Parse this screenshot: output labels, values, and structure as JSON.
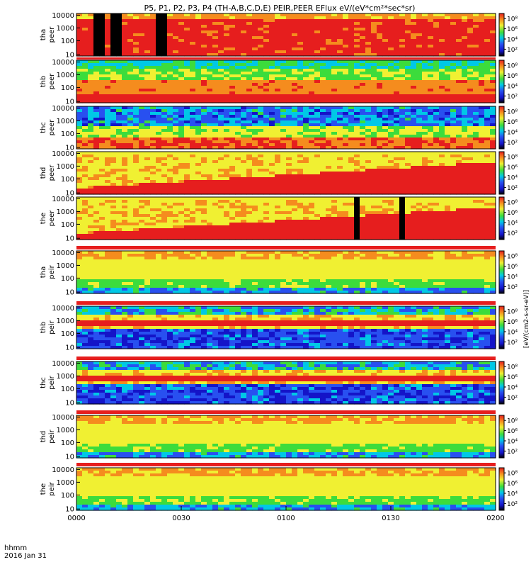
{
  "chart_data": {
    "type": "heatmap",
    "title": "P5, P1, P2, P3, P4 (TH-A,B,C,D,E) PEIR,PEER EFlux eV/(eV*cm²*sec*sr)",
    "colorbar_label": "[eV/(cm2-s-sr-eV)]",
    "x_axis": {
      "tick_labels": [
        "0000",
        "0030",
        "0100",
        "0130",
        "0200"
      ],
      "label_line1": "hhmm",
      "label_line2": "2016 Jan 31"
    },
    "y_tick_labels": [
      "10",
      "100",
      "1000",
      "10000"
    ],
    "colorbar_ticks": [
      "10²",
      "10⁴",
      "10⁶",
      "10⁸"
    ],
    "colors": {
      "black": "#000000",
      "dark_blue": "#1414c8",
      "blue": "#2850f0",
      "cyan": "#00c8e6",
      "green": "#3cdc3c",
      "yellow": "#f0f032",
      "orange": "#f58c1e",
      "red": "#e61e1e"
    },
    "panels": [
      {
        "probe": "tha",
        "species": "peer",
        "pattern": "electron-dense-red",
        "gaps": [
          0.05,
          0.09,
          0.2
        ]
      },
      {
        "probe": "thb",
        "species": "peer",
        "pattern": "electron-banded",
        "gaps": []
      },
      {
        "probe": "thc",
        "species": "peer",
        "pattern": "electron-noisy",
        "gaps": []
      },
      {
        "probe": "thd",
        "species": "peer",
        "pattern": "electron-rising",
        "gaps": []
      },
      {
        "probe": "the",
        "species": "peer",
        "pattern": "electron-rising",
        "gaps": [
          0.67,
          0.78
        ]
      },
      {
        "probe": "tha",
        "species": "peir",
        "pattern": "ion-broad",
        "gaps": []
      },
      {
        "probe": "thb",
        "species": "peir",
        "pattern": "ion-noisy-band",
        "gaps": []
      },
      {
        "probe": "thc",
        "species": "peir",
        "pattern": "ion-noisy-band",
        "gaps": []
      },
      {
        "probe": "thd",
        "species": "peir",
        "pattern": "ion-broad",
        "gaps": []
      },
      {
        "probe": "the",
        "species": "peir",
        "pattern": "ion-broad",
        "gaps": []
      }
    ]
  }
}
